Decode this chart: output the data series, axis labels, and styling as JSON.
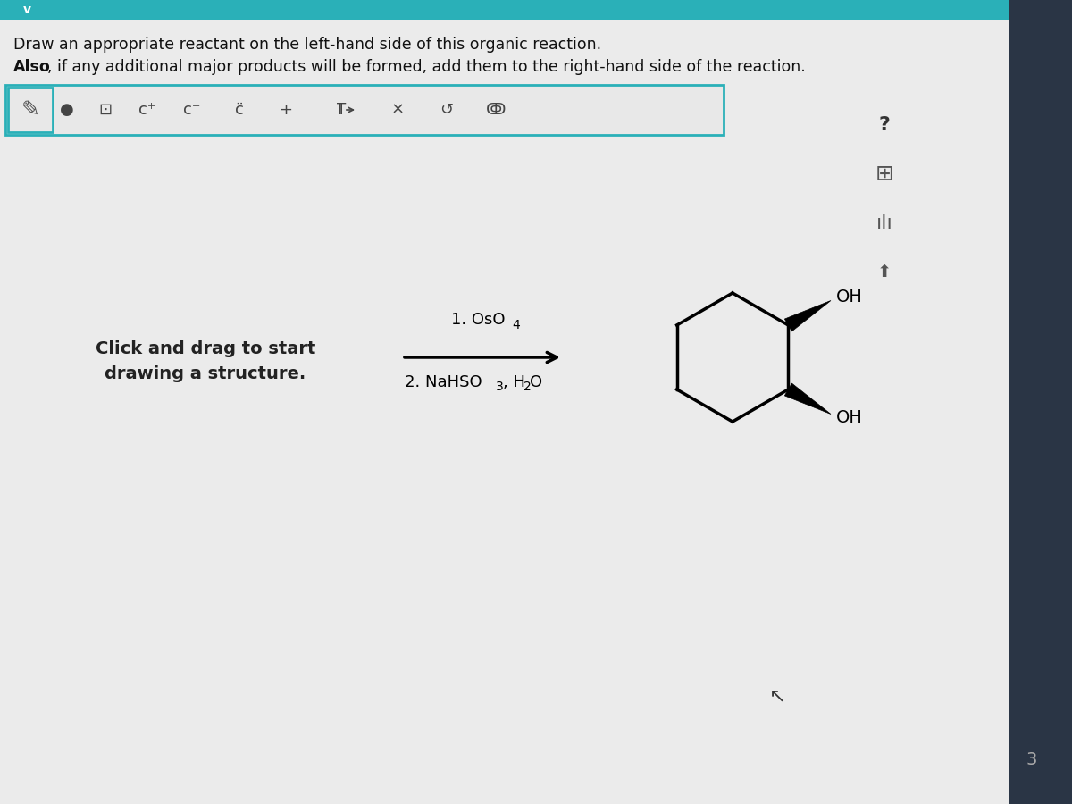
{
  "title_line1": "Draw an appropriate reactant on the left-hand side of this organic reaction.",
  "title_line2_normal": ", if any additional major products will be formed, add them to the right-hand side of the reaction.",
  "title_line2_bold": "Also",
  "instruction_text_line1": "Click and drag to start",
  "instruction_text_line2": "drawing a structure.",
  "reagent_above": "1. OsO",
  "reagent_above_sub": "4",
  "reagent_below_1": "2. NaHSO",
  "reagent_below_sub": "3",
  "reagent_below_2": ", H",
  "reagent_below_sub2": "2",
  "reagent_below_3": "O",
  "main_bg": "#e8e8e8",
  "toolbar_bg": "#e0e0e0",
  "toolbar_border": "#2ab0b8",
  "teal_bar": "#2ab0b8",
  "right_sidebar_bg": "#c8c8c8",
  "far_right_bg": "#1a2535",
  "text_color": "#111111",
  "arrow_color": "#000000",
  "ring_color": "#000000",
  "wedge_color": "#000000",
  "oh_color": "#000000",
  "page_num": "3"
}
